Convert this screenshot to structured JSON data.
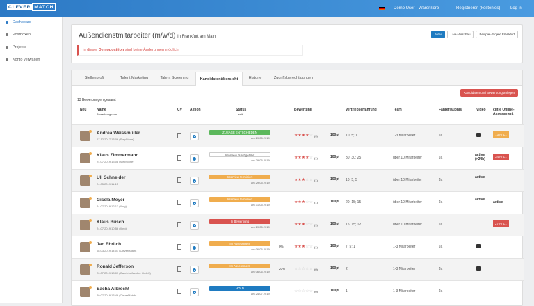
{
  "navbar": {
    "logo_a": "CLEVER",
    "logo_b": "MATCH",
    "user": "Demo User",
    "cart": "Warenkorb",
    "register": "Registrieren (kostenlos)",
    "login": "Log In"
  },
  "sidebar": {
    "items": [
      "Dashboard",
      "Postboxen",
      "Projekte",
      "Konto verwalten"
    ]
  },
  "header": {
    "title": "Außendienstmitarbeiter (m/w/d)",
    "location": "in Frankfurt am Main",
    "buttons": [
      "Aktiv",
      "Live-Vorschau",
      "Beispiel-Projekt Frankfurt"
    ],
    "alert_before": "In dieser",
    "alert_bold": "Demoposition",
    "alert_after": "sind keine Änderungen möglich!"
  },
  "tabs": {
    "items": [
      "Stellenprofil",
      "Talent Marketing",
      "Talent Screening",
      "Kandidatenübersicht",
      "Historie",
      "Zugriffsberechtigungen"
    ],
    "active": 3
  },
  "create_button": "Kandidaten und Bewerbung anlegen",
  "total": "13 Bewerbungen gesamt",
  "table": {
    "headers": {
      "new": "Neu",
      "name": "Name",
      "name_sub": "Bewerbung vom",
      "cv": "CV",
      "action": "Aktion",
      "status": "Status",
      "status_sub": "seit",
      "rating": "Bewertung",
      "experience": "Vertriebserfahrung",
      "team": "Team",
      "license": "Fahrerlaubnis",
      "video": "Video",
      "assessment": "cut-e Online-Assessment"
    },
    "rows": [
      {
        "name": "Andrea Weissmüller",
        "date": "07.12.2017 13:06 (StepStone)",
        "status": "ZUSAGE ENTSCHIEDEN",
        "status_color": "#5cb85c",
        "since": "am 29.05.2019",
        "stars": 4,
        "count": "(0)",
        "points": "100pt",
        "experience": "10; 5; 1",
        "team": "1-3 Mitarbeiter",
        "license": "Ja",
        "video_icon": true,
        "assessment": "73 Proz.",
        "assessment_color": "#f0ad4e"
      },
      {
        "name": "Klaus Zimmermann",
        "date": "24.07.2019 13:08 (StepStone)",
        "status": "Interview durchgeführt",
        "status_color": "#ffffff",
        "since": "am 29.05.2019",
        "stars": 4,
        "count": "(1)",
        "points": "100pt",
        "experience": "30; 30; 25",
        "team": "über 10 Mitarbeiter",
        "license": "Ja",
        "video": "active (>24h)",
        "assessment": "34 Proz.",
        "assessment_color": "#d9534f"
      },
      {
        "name": "Uli Schneider",
        "date": "24.05.2019 11:15",
        "status": "Interview terminiert",
        "status_color": "#f0ad4e",
        "since": "am 29.05.2019",
        "stars": 3,
        "count": "(1)",
        "points": "100pt",
        "experience": "10; 5; 5",
        "team": "über 10 Mitarbeiter",
        "license": "Ja",
        "video": "active"
      },
      {
        "name": "Gisela Meyer",
        "date": "24.07.2019 12:13 (Xing)",
        "status": "Interview terminiert",
        "status_color": "#f0ad4e",
        "since": "am 31.05.2019",
        "stars": 3,
        "count": "(1)",
        "points": "100pt",
        "experience": "20; 15; 15",
        "team": "über 10 Mitarbeiter",
        "license": "Ja",
        "video": "active",
        "assessment_text": "active"
      },
      {
        "name": "Klaus Busch",
        "date": "24.07.2019 10:56 (Xing)",
        "status": "In Bewerbung",
        "status_color": "#d9534f",
        "since": "am 29.05.2019",
        "stars": 3,
        "count": "(1)",
        "points": "100pt",
        "experience": "15; 15; 12",
        "team": "über 10 Mitarbeiter",
        "license": "Ja",
        "assessment": "27 Proz.",
        "assessment_color": "#d9534f"
      },
      {
        "name": "Jan Ehrlich",
        "date": "08.03.2019 14:01 (CleverMatch)",
        "status": "Im Assessment",
        "status_color": "#f0ad4e",
        "since": "am 06.06.2019",
        "percent": "0%",
        "stars": 3,
        "count": "(1)",
        "points": "100pt",
        "experience": "7; 5; 1",
        "team": "1-3 Mitarbeiter",
        "license": "Ja",
        "video_icon": true
      },
      {
        "name": "Ronald Jefferson",
        "date": "20.07.2019 18:07 (Gabriela Jaecker GmbH)",
        "status": "Im Assessment",
        "status_color": "#f0ad4e",
        "since": "am 06.06.2019",
        "percent": "20%",
        "stars": 0,
        "count": "(0)",
        "points": "100pt",
        "experience": "2",
        "team": "1-3 Mitarbeiter",
        "license": "Ja",
        "video_icon": true
      },
      {
        "name": "Sacha Albrecht",
        "date": "20.07.2019 13:46 (CleverMatch)",
        "status": "HOLD",
        "status_color": "#1f7bc1",
        "since": "am 24.07.2019",
        "stars": 0,
        "count": "(0)",
        "points": "100pt",
        "experience": "1",
        "team": "1-3 Mitarbeiter",
        "license": "Ja"
      }
    ]
  }
}
